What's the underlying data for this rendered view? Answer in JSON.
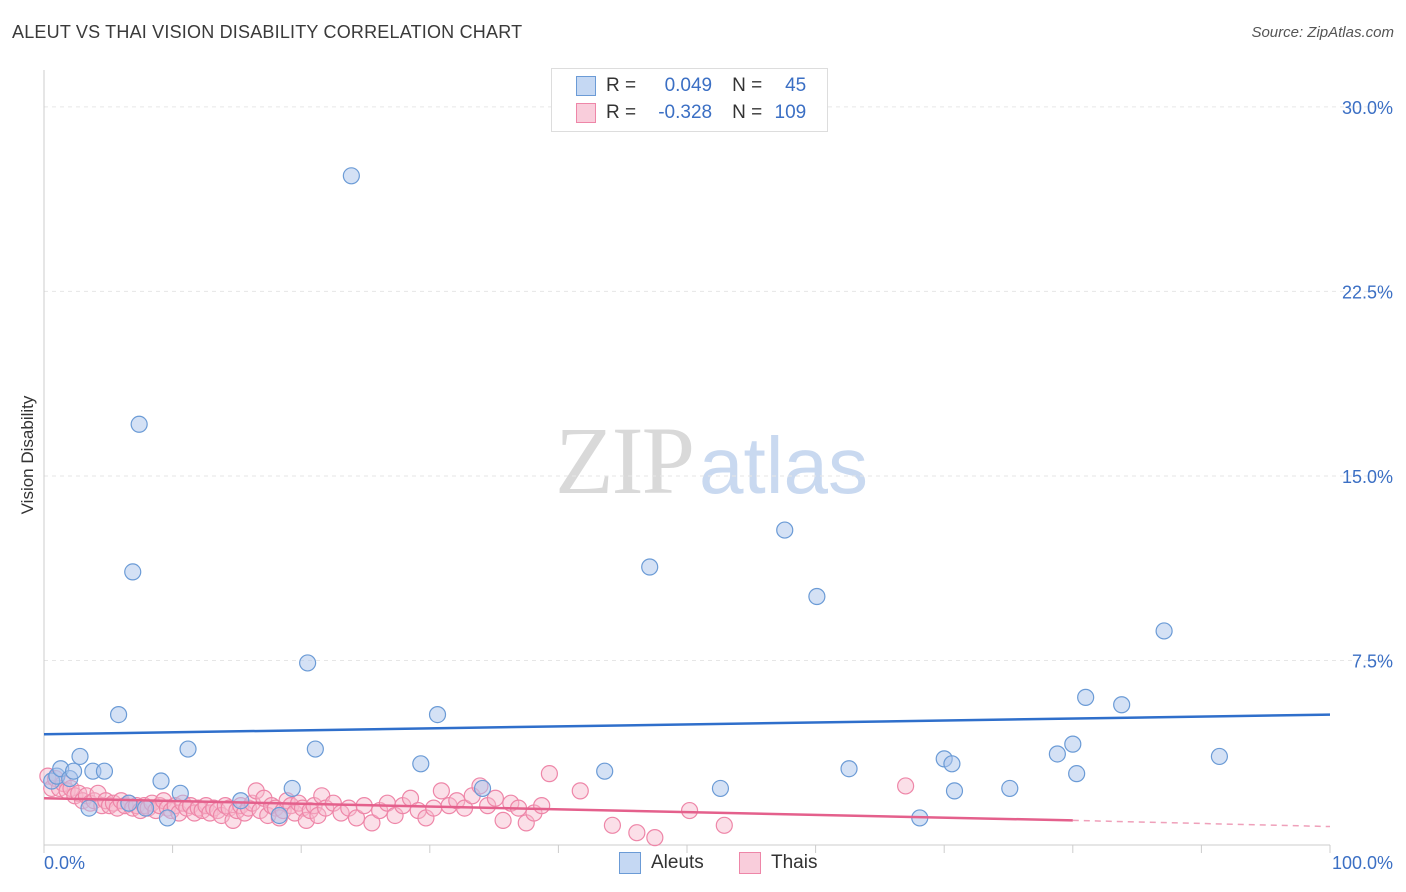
{
  "title": "ALEUT VS THAI VISION DISABILITY CORRELATION CHART",
  "source": "Source: ZipAtlas.com",
  "watermark": {
    "zip": "ZIP",
    "atlas": "atlas"
  },
  "colors": {
    "aleut_fill": "#a9c4ec",
    "aleut_stroke": "#6b9bd6",
    "aleut_line": "#2f6fcb",
    "thai_fill": "#f6b7cc",
    "thai_stroke": "#ee86a8",
    "thai_line": "#e4608c",
    "axis_text": "#3b6fc4",
    "grid": "#e6e6e6"
  },
  "legend_top": {
    "rows": [
      {
        "r_label": "R =",
        "r_value": "0.049",
        "n_label": "N =",
        "n_value": "45"
      },
      {
        "r_label": "R =",
        "r_value": "-0.328",
        "n_label": "N =",
        "n_value": "109"
      }
    ]
  },
  "legend_bottom": {
    "aleut": "Aleuts",
    "thai": "Thais"
  },
  "chart_data": {
    "type": "scatter",
    "title": "ALEUT VS THAI VISION DISABILITY CORRELATION CHART",
    "xlabel": "",
    "ylabel": "Vision Disability",
    "xlim": [
      0,
      100
    ],
    "ylim": [
      0,
      31.5
    ],
    "x_tick_labels": [
      "0.0%",
      "100.0%"
    ],
    "y_ticks": [
      7.5,
      15.0,
      22.5,
      30.0
    ],
    "y_tick_labels": [
      "7.5%",
      "15.0%",
      "22.5%",
      "30.0%"
    ],
    "series": [
      {
        "name": "Aleuts",
        "R": 0.049,
        "N": 45,
        "trend": {
          "x0": 0,
          "y0": 4.5,
          "x1": 100,
          "y1": 5.3
        },
        "points": [
          [
            0.6,
            2.6
          ],
          [
            1.0,
            2.8
          ],
          [
            1.3,
            3.1
          ],
          [
            2.0,
            2.7
          ],
          [
            2.3,
            3.0
          ],
          [
            2.8,
            3.6
          ],
          [
            3.5,
            1.5
          ],
          [
            3.8,
            3.0
          ],
          [
            4.7,
            3.0
          ],
          [
            5.8,
            5.3
          ],
          [
            6.6,
            1.7
          ],
          [
            6.9,
            11.1
          ],
          [
            7.4,
            17.1
          ],
          [
            7.9,
            1.5
          ],
          [
            9.1,
            2.6
          ],
          [
            9.6,
            1.1
          ],
          [
            10.6,
            2.1
          ],
          [
            11.2,
            3.9
          ],
          [
            15.3,
            1.8
          ],
          [
            18.3,
            1.2
          ],
          [
            19.3,
            2.3
          ],
          [
            20.5,
            7.4
          ],
          [
            21.1,
            3.9
          ],
          [
            23.9,
            27.2
          ],
          [
            29.3,
            3.3
          ],
          [
            30.6,
            5.3
          ],
          [
            34.1,
            2.3
          ],
          [
            43.6,
            3.0
          ],
          [
            47.1,
            11.3
          ],
          [
            52.6,
            2.3
          ],
          [
            57.6,
            12.8
          ],
          [
            60.1,
            10.1
          ],
          [
            62.6,
            3.1
          ],
          [
            68.1,
            1.1
          ],
          [
            70.0,
            3.5
          ],
          [
            70.6,
            3.3
          ],
          [
            70.8,
            2.2
          ],
          [
            75.1,
            2.3
          ],
          [
            78.8,
            3.7
          ],
          [
            80.0,
            4.1
          ],
          [
            80.3,
            2.9
          ],
          [
            81.0,
            6.0
          ],
          [
            83.8,
            5.7
          ],
          [
            87.1,
            8.7
          ],
          [
            91.4,
            3.6
          ]
        ]
      },
      {
        "name": "Thais",
        "R": -0.328,
        "N": 109,
        "trend": {
          "x0": 0,
          "y0": 1.9,
          "x1": 80,
          "y1": 1.0,
          "dash_x1": 100,
          "dash_y1": 0.75
        },
        "points": [
          [
            0.3,
            2.8
          ],
          [
            0.6,
            2.3
          ],
          [
            0.9,
            2.7
          ],
          [
            1.2,
            2.3
          ],
          [
            1.5,
            2.5
          ],
          [
            1.8,
            2.2
          ],
          [
            2.1,
            2.3
          ],
          [
            2.4,
            2.0
          ],
          [
            2.7,
            2.1
          ],
          [
            3.0,
            1.8
          ],
          [
            3.3,
            2.0
          ],
          [
            3.6,
            1.7
          ],
          [
            3.9,
            1.8
          ],
          [
            4.2,
            2.1
          ],
          [
            4.5,
            1.6
          ],
          [
            4.8,
            1.8
          ],
          [
            5.1,
            1.6
          ],
          [
            5.4,
            1.7
          ],
          [
            5.7,
            1.5
          ],
          [
            6.0,
            1.8
          ],
          [
            6.3,
            1.6
          ],
          [
            6.6,
            1.7
          ],
          [
            6.9,
            1.5
          ],
          [
            7.2,
            1.6
          ],
          [
            7.5,
            1.4
          ],
          [
            7.8,
            1.6
          ],
          [
            8.1,
            1.5
          ],
          [
            8.4,
            1.7
          ],
          [
            8.7,
            1.4
          ],
          [
            9.0,
            1.6
          ],
          [
            9.3,
            1.8
          ],
          [
            9.6,
            1.5
          ],
          [
            9.9,
            1.4
          ],
          [
            10.2,
            1.6
          ],
          [
            10.5,
            1.3
          ],
          [
            10.8,
            1.7
          ],
          [
            11.1,
            1.5
          ],
          [
            11.4,
            1.6
          ],
          [
            11.7,
            1.3
          ],
          [
            12.0,
            1.5
          ],
          [
            12.3,
            1.4
          ],
          [
            12.6,
            1.6
          ],
          [
            12.9,
            1.3
          ],
          [
            13.2,
            1.5
          ],
          [
            13.5,
            1.4
          ],
          [
            13.8,
            1.2
          ],
          [
            14.1,
            1.6
          ],
          [
            14.4,
            1.5
          ],
          [
            14.7,
            1.0
          ],
          [
            15.0,
            1.4
          ],
          [
            15.3,
            1.6
          ],
          [
            15.6,
            1.3
          ],
          [
            15.9,
            1.5
          ],
          [
            16.2,
            1.7
          ],
          [
            16.5,
            2.2
          ],
          [
            16.8,
            1.4
          ],
          [
            17.1,
            1.9
          ],
          [
            17.4,
            1.2
          ],
          [
            17.7,
            1.6
          ],
          [
            18.0,
            1.5
          ],
          [
            18.3,
            1.1
          ],
          [
            18.6,
            1.4
          ],
          [
            18.9,
            1.8
          ],
          [
            19.2,
            1.6
          ],
          [
            19.5,
            1.3
          ],
          [
            19.8,
            1.7
          ],
          [
            20.1,
            1.5
          ],
          [
            20.4,
            1.0
          ],
          [
            20.7,
            1.4
          ],
          [
            21.0,
            1.6
          ],
          [
            21.3,
            1.2
          ],
          [
            21.6,
            2.0
          ],
          [
            21.9,
            1.5
          ],
          [
            22.5,
            1.7
          ],
          [
            23.1,
            1.3
          ],
          [
            23.7,
            1.5
          ],
          [
            24.3,
            1.1
          ],
          [
            24.9,
            1.6
          ],
          [
            25.5,
            0.9
          ],
          [
            26.1,
            1.4
          ],
          [
            26.7,
            1.7
          ],
          [
            27.3,
            1.2
          ],
          [
            27.9,
            1.6
          ],
          [
            28.5,
            1.9
          ],
          [
            29.1,
            1.4
          ],
          [
            29.7,
            1.1
          ],
          [
            30.3,
            1.5
          ],
          [
            30.9,
            2.2
          ],
          [
            31.5,
            1.6
          ],
          [
            32.1,
            1.8
          ],
          [
            32.7,
            1.5
          ],
          [
            33.3,
            2.0
          ],
          [
            33.9,
            2.4
          ],
          [
            34.5,
            1.6
          ],
          [
            35.1,
            1.9
          ],
          [
            35.7,
            1.0
          ],
          [
            36.3,
            1.7
          ],
          [
            36.9,
            1.5
          ],
          [
            37.5,
            0.9
          ],
          [
            38.1,
            1.3
          ],
          [
            38.7,
            1.6
          ],
          [
            39.3,
            2.9
          ],
          [
            41.7,
            2.2
          ],
          [
            44.2,
            0.8
          ],
          [
            46.1,
            0.5
          ],
          [
            47.5,
            0.3
          ],
          [
            50.2,
            1.4
          ],
          [
            52.9,
            0.8
          ],
          [
            67.0,
            2.4
          ]
        ]
      }
    ]
  }
}
